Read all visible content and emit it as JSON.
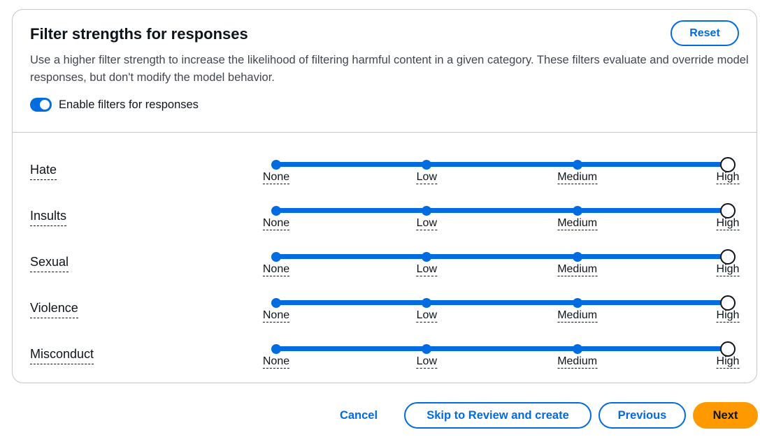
{
  "panel": {
    "title": "Filter strengths for responses",
    "reset_label": "Reset",
    "description": "Use a higher filter strength to increase the likelihood of filtering harmful content in a given category. These filters evaluate and override model responses, but don't modify the model behavior.",
    "toggle": {
      "label": "Enable filters for responses",
      "enabled": true
    }
  },
  "strength_levels": [
    "None",
    "Low",
    "Medium",
    "High"
  ],
  "filters": [
    {
      "label": "Hate",
      "value": "High"
    },
    {
      "label": "Insults",
      "value": "High"
    },
    {
      "label": "Sexual",
      "value": "High"
    },
    {
      "label": "Violence",
      "value": "High"
    },
    {
      "label": "Misconduct",
      "value": "High"
    }
  ],
  "footer": {
    "cancel_label": "Cancel",
    "skip_label": "Skip to Review and create",
    "previous_label": "Previous",
    "next_label": "Next"
  },
  "colors": {
    "accent": "#006ce0",
    "primary_button": "#ff9900",
    "border": "#c6c6cd"
  }
}
